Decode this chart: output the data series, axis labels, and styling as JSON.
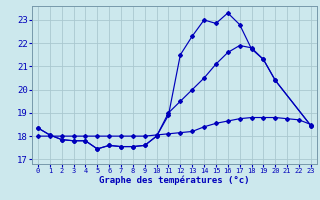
{
  "title": "Graphe des températures (°c)",
  "background_color": "#cce8ed",
  "grid_color": "#aac8d0",
  "line_color": "#0000bb",
  "xlim": [
    -0.5,
    23.5
  ],
  "ylim": [
    16.8,
    23.6
  ],
  "yticks": [
    17,
    18,
    19,
    20,
    21,
    22,
    23
  ],
  "xticks": [
    0,
    1,
    2,
    3,
    4,
    5,
    6,
    7,
    8,
    9,
    10,
    11,
    12,
    13,
    14,
    15,
    16,
    17,
    18,
    19,
    20,
    21,
    22,
    23
  ],
  "s1_x": [
    0,
    1,
    2,
    3,
    4,
    5,
    6,
    7,
    8,
    9,
    10,
    11,
    12,
    13,
    14,
    15,
    16,
    17,
    18,
    19,
    20,
    23
  ],
  "s1_y": [
    18.35,
    18.05,
    17.85,
    17.8,
    17.8,
    17.45,
    17.6,
    17.55,
    17.55,
    17.6,
    18.0,
    18.9,
    21.5,
    22.3,
    23.0,
    22.85,
    23.3,
    22.8,
    21.75,
    21.3,
    20.4,
    18.45
  ],
  "s2_x": [
    0,
    1,
    2,
    3,
    4,
    5,
    6,
    7,
    8,
    9,
    10,
    11,
    12,
    13,
    14,
    15,
    16,
    17,
    18,
    19,
    20,
    23
  ],
  "s2_y": [
    18.35,
    18.05,
    17.85,
    17.8,
    17.8,
    17.45,
    17.6,
    17.55,
    17.55,
    17.6,
    18.0,
    19.0,
    19.5,
    20.0,
    20.5,
    21.1,
    21.6,
    21.9,
    21.8,
    21.3,
    20.4,
    18.45
  ],
  "s3_x": [
    0,
    1,
    2,
    3,
    4,
    5,
    6,
    7,
    8,
    9,
    10,
    11,
    12,
    13,
    14,
    15,
    16,
    17,
    18,
    19,
    20,
    21,
    22,
    23
  ],
  "s3_y": [
    18.0,
    18.0,
    18.0,
    18.0,
    18.0,
    18.0,
    18.0,
    18.0,
    18.0,
    18.0,
    18.05,
    18.1,
    18.15,
    18.2,
    18.4,
    18.55,
    18.65,
    18.75,
    18.8,
    18.8,
    18.8,
    18.75,
    18.7,
    18.5
  ]
}
